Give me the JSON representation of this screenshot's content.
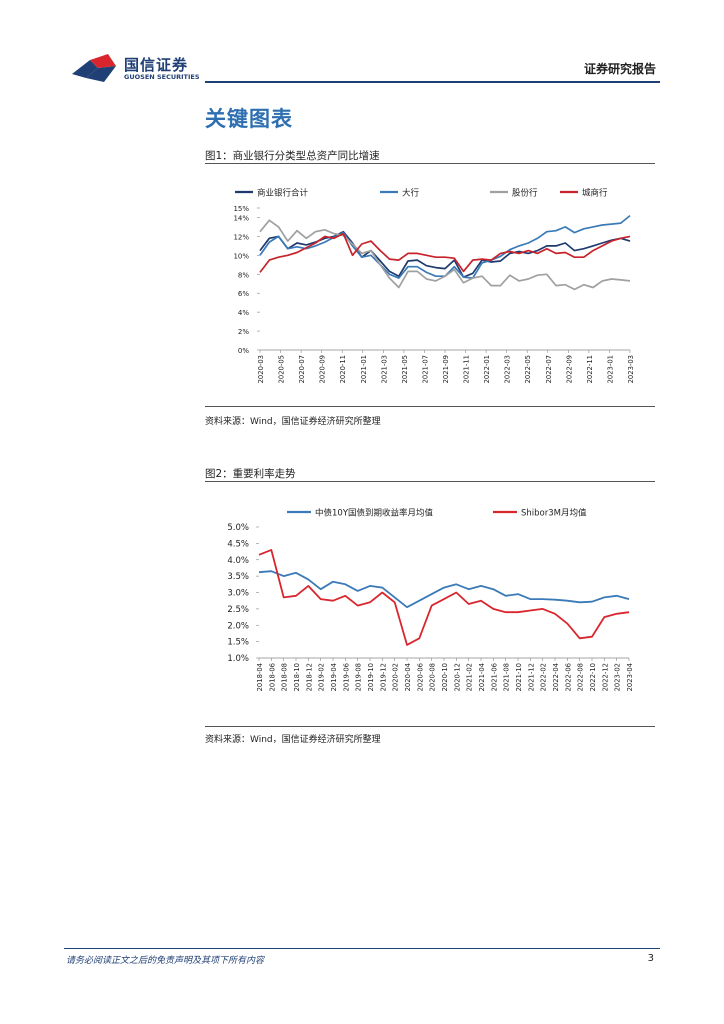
{
  "header": {
    "logo_cn": "国信证券",
    "logo_en": "GUOSEN SECURITIES",
    "report_tag": "证券研究报告",
    "colors": {
      "brand": "#1f3f75",
      "logo_red": "#d9262e"
    }
  },
  "section_title": "关键图表",
  "figures": [
    {
      "title": "图1：商业银行分类型总资产同比增速",
      "source": "资料来源：Wind，国信证券经济研究所整理"
    },
    {
      "title": "图2：重要利率走势",
      "source": "资料来源：Wind，国信证券经济研究所整理"
    }
  ],
  "footer": {
    "note": "请务必阅读正文之后的免责声明及其项下所有内容",
    "page_number": "3"
  },
  "chart_data": [
    {
      "type": "line",
      "title": "图1：商业银行分类型总资产同比增速",
      "xlabel": "",
      "ylabel": "",
      "ylim": [
        0,
        15
      ],
      "y_ticks": [
        "0%",
        "2%",
        "4%",
        "6%",
        "8%",
        "10%",
        "12%",
        "14%",
        "15%"
      ],
      "y_tick_values": [
        0,
        2,
        4,
        6,
        8,
        10,
        12,
        14,
        15
      ],
      "x_tick_labels": [
        "2020-03",
        "2020-05",
        "2020-07",
        "2020-09",
        "2020-11",
        "2021-01",
        "2021-03",
        "2021-05",
        "2021-07",
        "2021-09",
        "2021-11",
        "2022-01",
        "2022-03",
        "2022-05",
        "2022-07",
        "2022-09",
        "2022-11",
        "2023-01",
        "2023-03"
      ],
      "legend_position": "top",
      "series": [
        {
          "name": "商业银行合计",
          "color": "#1f3b6e",
          "values": [
            10.5,
            11.8,
            12.0,
            10.7,
            11.3,
            11.1,
            11.4,
            11.8,
            12.0,
            12.5,
            11.3,
            9.8,
            10.5,
            9.4,
            8.3,
            7.8,
            9.4,
            9.5,
            8.9,
            8.7,
            8.6,
            9.5,
            7.7,
            8.1,
            9.5,
            9.3,
            9.4,
            10.2,
            10.4,
            10.2,
            10.5,
            11.0,
            11.0,
            11.3,
            10.5,
            10.7,
            11.0,
            11.3,
            11.6,
            11.8,
            11.5
          ]
        },
        {
          "name": "大行",
          "color": "#3a7ab8",
          "values": [
            10.0,
            11.4,
            12.0,
            10.7,
            10.9,
            10.7,
            11.0,
            11.4,
            11.9,
            12.4,
            11.0,
            9.8,
            10.0,
            9.0,
            8.0,
            7.6,
            8.8,
            8.8,
            8.2,
            7.8,
            7.8,
            8.8,
            7.7,
            7.6,
            9.2,
            9.5,
            9.9,
            10.6,
            11.0,
            11.3,
            11.8,
            12.5,
            12.6,
            13.0,
            12.4,
            12.8,
            13.0,
            13.2,
            13.3,
            13.4,
            14.2
          ]
        },
        {
          "name": "股份行",
          "color": "#a0a0a0",
          "values": [
            12.5,
            13.7,
            13.0,
            11.5,
            12.6,
            11.8,
            12.5,
            12.7,
            12.3,
            12.1,
            11.2,
            10.2,
            10.5,
            9.0,
            7.6,
            6.6,
            8.3,
            8.3,
            7.5,
            7.3,
            7.8,
            8.5,
            7.1,
            7.6,
            7.8,
            6.8,
            6.8,
            7.9,
            7.3,
            7.5,
            7.9,
            8.0,
            6.8,
            6.9,
            6.4,
            6.9,
            6.6,
            7.3,
            7.5,
            7.4,
            7.3
          ]
        },
        {
          "name": "城商行",
          "color": "#c8222a",
          "values": [
            8.2,
            9.5,
            9.8,
            10.0,
            10.3,
            10.8,
            11.3,
            12.0,
            11.8,
            12.3,
            10.0,
            11.2,
            11.5,
            10.5,
            9.6,
            9.5,
            10.2,
            10.2,
            10.0,
            9.8,
            9.8,
            9.7,
            8.3,
            9.5,
            9.6,
            9.5,
            10.2,
            10.4,
            10.2,
            10.5,
            10.2,
            10.7,
            10.2,
            10.3,
            9.8,
            9.8,
            10.5,
            11.0,
            11.5,
            11.8,
            12.0
          ]
        }
      ]
    },
    {
      "type": "line",
      "title": "图2：重要利率走势",
      "xlabel": "",
      "ylabel": "",
      "ylim": [
        1.0,
        5.0
      ],
      "y_ticks": [
        "1.0%",
        "1.5%",
        "2.0%",
        "2.5%",
        "3.0%",
        "3.5%",
        "4.0%",
        "4.5%",
        "5.0%"
      ],
      "y_tick_values": [
        1.0,
        1.5,
        2.0,
        2.5,
        3.0,
        3.5,
        4.0,
        4.5,
        5.0
      ],
      "x_tick_labels": [
        "2018-04",
        "2018-06",
        "2018-08",
        "2018-10",
        "2018-12",
        "2019-02",
        "2019-04",
        "2019-06",
        "2019-08",
        "2019-10",
        "2019-12",
        "2020-02",
        "2020-04",
        "2020-06",
        "2020-08",
        "2020-10",
        "2020-12",
        "2021-02",
        "2021-04",
        "2021-06",
        "2021-08",
        "2021-10",
        "2021-12",
        "2022-02",
        "2022-04",
        "2022-06",
        "2022-08",
        "2022-10",
        "2022-12",
        "2023-02",
        "2023-04"
      ],
      "legend_position": "top",
      "series": [
        {
          "name": "中债10Y国债到期收益率月均值",
          "color": "#3a7ab8",
          "values": [
            3.62,
            3.65,
            3.5,
            3.6,
            3.4,
            3.1,
            3.33,
            3.25,
            3.05,
            3.2,
            3.15,
            2.85,
            2.55,
            2.75,
            2.95,
            3.15,
            3.25,
            3.1,
            3.2,
            3.1,
            2.9,
            2.95,
            2.8,
            2.8,
            2.78,
            2.75,
            2.7,
            2.72,
            2.85,
            2.9,
            2.8
          ]
        },
        {
          "name": "Shibor3M月均值",
          "color": "#d9262e",
          "values": [
            4.15,
            4.3,
            2.85,
            2.9,
            3.2,
            2.8,
            2.75,
            2.9,
            2.6,
            2.7,
            3.0,
            2.7,
            1.4,
            1.6,
            2.6,
            2.8,
            3.0,
            2.65,
            2.75,
            2.5,
            2.4,
            2.4,
            2.45,
            2.5,
            2.35,
            2.05,
            1.6,
            1.65,
            2.25,
            2.35,
            2.4
          ]
        }
      ]
    }
  ]
}
